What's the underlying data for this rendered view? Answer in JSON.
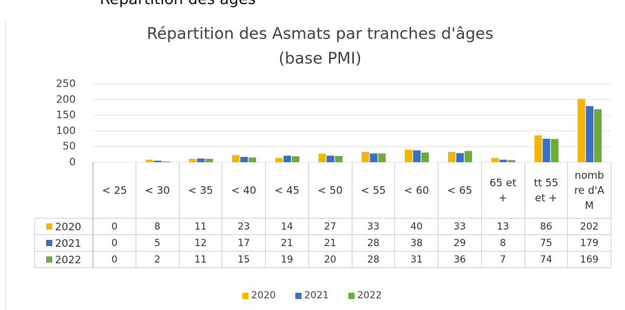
{
  "header": "Répartition des âges",
  "chart_data": {
    "type": "bar",
    "title": "Répartition des Asmats par tranches d'âges",
    "subtitle": "(base PMI)",
    "categories": [
      "< 25",
      "< 30",
      "< 35",
      "< 40",
      "< 45",
      "< 50",
      "< 55",
      "< 60",
      "< 65",
      "65 et +",
      "tt 55 et +",
      "nombre d'AM"
    ],
    "series": [
      {
        "name": "2020",
        "color": "#f2b705",
        "values": [
          0,
          8,
          11,
          23,
          14,
          27,
          33,
          40,
          33,
          13,
          86,
          202
        ]
      },
      {
        "name": "2021",
        "color": "#3b6fc4",
        "values": [
          0,
          5,
          12,
          17,
          21,
          21,
          28,
          38,
          29,
          8,
          75,
          179
        ]
      },
      {
        "name": "2022",
        "color": "#6cab3c",
        "values": [
          0,
          2,
          11,
          15,
          19,
          20,
          28,
          31,
          36,
          7,
          74,
          169
        ]
      }
    ],
    "ylim": [
      0,
      250
    ],
    "yticks": [
      0,
      50,
      100,
      150,
      200,
      250
    ],
    "grid": true
  }
}
